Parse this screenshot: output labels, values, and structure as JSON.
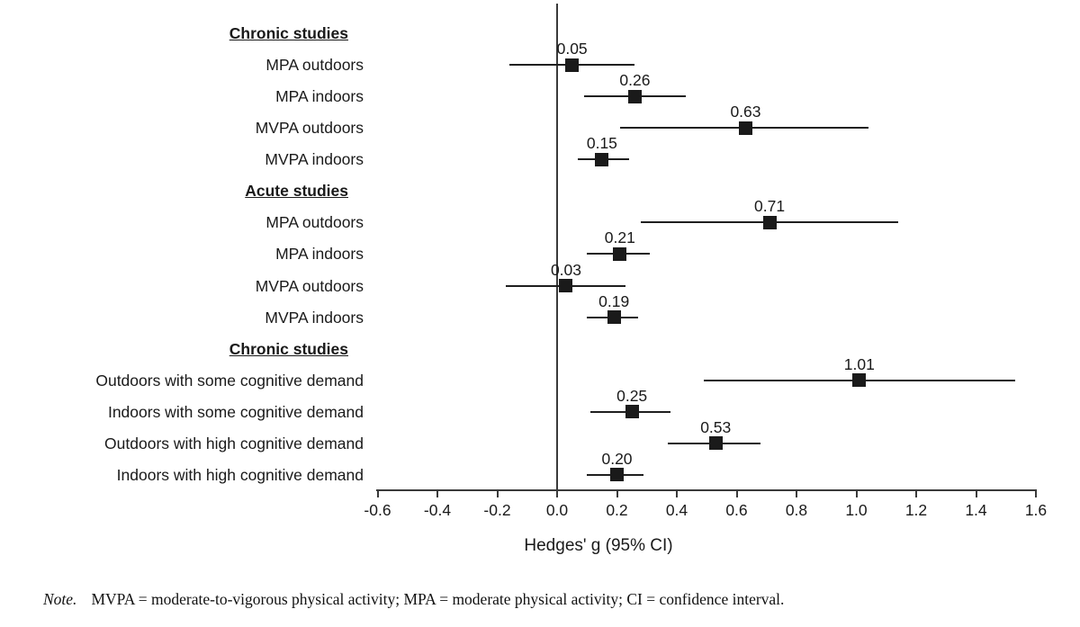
{
  "chart_data": {
    "type": "forest",
    "title": "",
    "xlabel": "Hedges' g (95% CI)",
    "xlim": [
      -0.6,
      1.6
    ],
    "grid": false,
    "x_tick_labels": [
      "-0.6",
      "-0.4",
      "-0.2",
      "0.0",
      "0.2",
      "0.4",
      "0.6",
      "0.8",
      "1.0",
      "1.2",
      "1.4",
      "1.6"
    ],
    "colors": {
      "marker": "#1a1a1a",
      "ci_line": "#1f1f1f",
      "axis": "#3a3a3a"
    },
    "sections": [
      {
        "header": "Chronic studies",
        "rows": [
          {
            "label": "MPA outdoors",
            "estimate": 0.05,
            "ci": [
              -0.16,
              0.26
            ],
            "value_label": "0.05"
          },
          {
            "label": "MPA indoors",
            "estimate": 0.26,
            "ci": [
              0.09,
              0.43
            ],
            "value_label": "0.26"
          },
          {
            "label": "MVPA outdoors",
            "estimate": 0.63,
            "ci": [
              0.21,
              1.04
            ],
            "value_label": "0.63"
          },
          {
            "label": "MVPA indoors",
            "estimate": 0.15,
            "ci": [
              0.07,
              0.24
            ],
            "value_label": "0.15"
          }
        ]
      },
      {
        "header": "Acute studies",
        "rows": [
          {
            "label": "MPA outdoors",
            "estimate": 0.71,
            "ci": [
              0.28,
              1.14
            ],
            "value_label": "0.71"
          },
          {
            "label": "MPA indoors",
            "estimate": 0.21,
            "ci": [
              0.1,
              0.31
            ],
            "value_label": "0.21"
          },
          {
            "label": "MVPA outdoors",
            "estimate": 0.03,
            "ci": [
              -0.17,
              0.23
            ],
            "value_label": "0.03"
          },
          {
            "label": "MVPA indoors",
            "estimate": 0.19,
            "ci": [
              0.1,
              0.27
            ],
            "value_label": "0.19"
          }
        ]
      },
      {
        "header": "Chronic studies",
        "rows": [
          {
            "label": "Outdoors with some cognitive demand",
            "estimate": 1.01,
            "ci": [
              0.49,
              1.53
            ],
            "value_label": "1.01"
          },
          {
            "label": "Indoors with some cognitive demand",
            "estimate": 0.25,
            "ci": [
              0.11,
              0.38
            ],
            "value_label": "0.25"
          },
          {
            "label": "Outdoors with high cognitive demand",
            "estimate": 0.53,
            "ci": [
              0.37,
              0.68
            ],
            "value_label": "0.53"
          },
          {
            "label": "Indoors with high cognitive demand",
            "estimate": 0.2,
            "ci": [
              0.1,
              0.29
            ],
            "value_label": "0.20"
          }
        ]
      }
    ]
  },
  "note": {
    "prefix": "Note.",
    "text": "MVPA = moderate-to-vigorous physical activity; MPA = moderate physical activity; CI = confidence interval."
  }
}
